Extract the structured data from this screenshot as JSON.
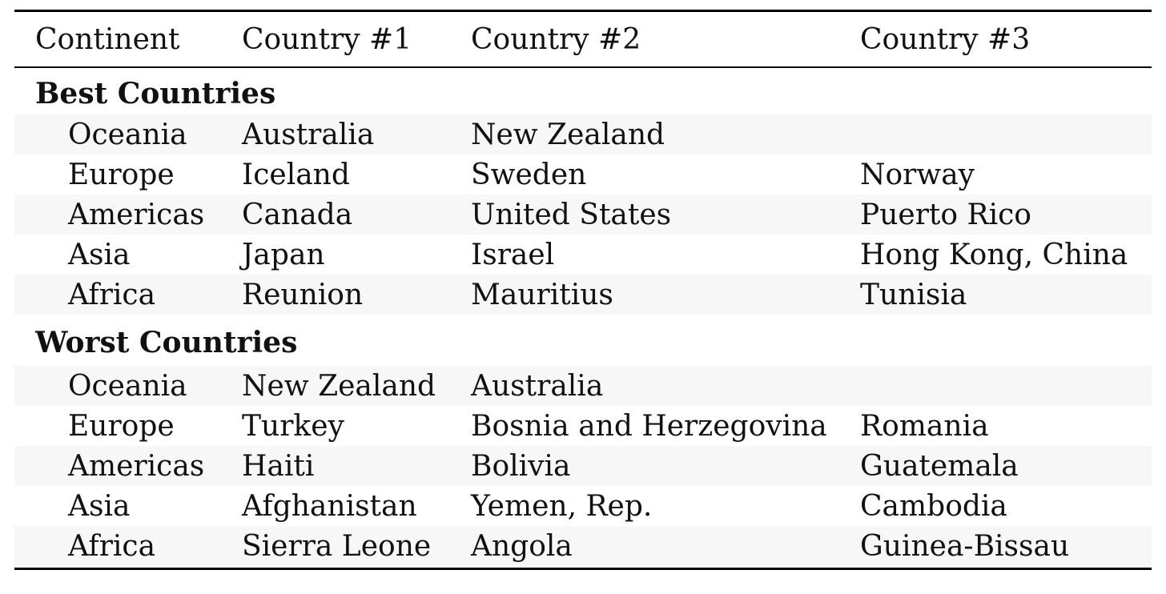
{
  "table": {
    "headers": [
      "Continent",
      "Country #1",
      "Country #2",
      "Country #3"
    ],
    "groups": [
      {
        "label": "Best Countries",
        "rows": [
          [
            "Oceania",
            "Australia",
            "New Zealand",
            ""
          ],
          [
            "Europe",
            "Iceland",
            "Sweden",
            "Norway"
          ],
          [
            "Americas",
            "Canada",
            "United States",
            "Puerto Rico"
          ],
          [
            "Asia",
            "Japan",
            "Israel",
            "Hong Kong, China"
          ],
          [
            "Africa",
            "Reunion",
            "Mauritius",
            "Tunisia"
          ]
        ]
      },
      {
        "label": "Worst Countries",
        "rows": [
          [
            "Oceania",
            "New Zealand",
            "Australia",
            ""
          ],
          [
            "Europe",
            "Turkey",
            "Bosnia and Herzegovina",
            "Romania"
          ],
          [
            "Americas",
            "Haiti",
            "Bolivia",
            "Guatemala"
          ],
          [
            "Asia",
            "Afghanistan",
            "Yemen, Rep.",
            "Cambodia"
          ],
          [
            "Africa",
            "Sierra Leone",
            "Angola",
            "Guinea-Bissau"
          ]
        ]
      }
    ]
  }
}
